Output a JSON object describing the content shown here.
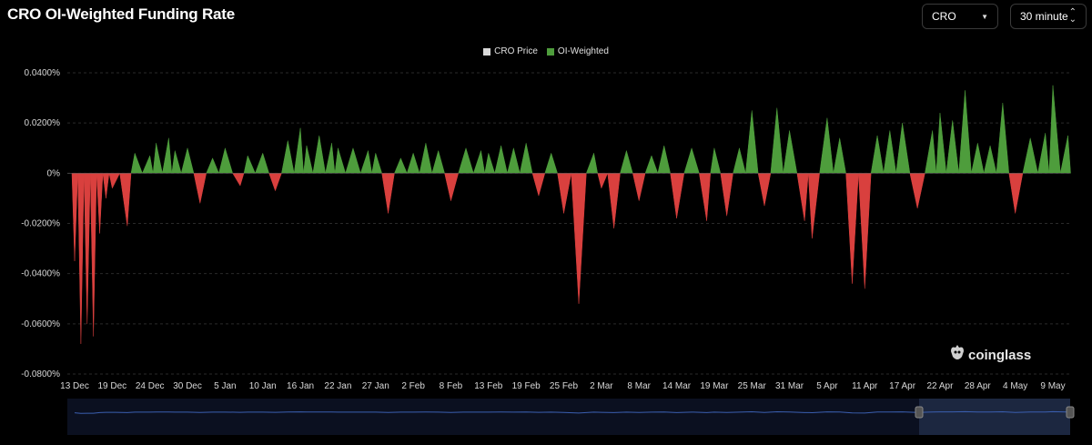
{
  "title": "CRO OI-Weighted Funding Rate",
  "controls": {
    "symbol": "CRO",
    "interval": "30 minute"
  },
  "watermark": "coinglass",
  "colors": {
    "positive": "#4e9d3c",
    "negative": "#d9403e",
    "price_swatch": "#d9d9d9",
    "navigator_line": "#3b5fb0",
    "navigator_bg": "#0b1020"
  },
  "chart_data": {
    "type": "area",
    "legend": [
      "CRO Price",
      "OI-Weighted"
    ],
    "legend_placement": "top-center",
    "y_unit": "%",
    "ylim": [
      -0.08,
      0.04
    ],
    "y_ticks": [
      "0.0400%",
      "0.0200%",
      "0%",
      "-0.0200%",
      "-0.0400%",
      "-0.0600%",
      "-0.0800%"
    ],
    "x_ticks": [
      "13 Dec",
      "19 Dec",
      "24 Dec",
      "30 Dec",
      "5 Jan",
      "10 Jan",
      "16 Jan",
      "22 Jan",
      "27 Jan",
      "2 Feb",
      "8 Feb",
      "13 Feb",
      "19 Feb",
      "25 Feb",
      "2 Mar",
      "8 Mar",
      "14 Mar",
      "19 Mar",
      "25 Mar",
      "31 Mar",
      "5 Apr",
      "11 Apr",
      "17 Apr",
      "22 Apr",
      "28 Apr",
      "4 May",
      "9 May"
    ],
    "series": [
      {
        "name": "OI-Weighted",
        "x": [
          "13 Dec",
          "14 Dec",
          "15 Dec",
          "16 Dec",
          "17 Dec",
          "18 Dec",
          "19 Dec",
          "21 Dec",
          "22 Dec",
          "24 Dec",
          "25 Dec",
          "27 Dec",
          "28 Dec",
          "30 Dec",
          "1 Jan",
          "3 Jan",
          "5 Jan",
          "7 Jan",
          "8 Jan",
          "10 Jan",
          "12 Jan",
          "14 Jan",
          "16 Jan",
          "17 Jan",
          "19 Jan",
          "21 Jan",
          "22 Jan",
          "24 Jan",
          "26 Jan",
          "27 Jan",
          "29 Jan",
          "31 Jan",
          "2 Feb",
          "4 Feb",
          "6 Feb",
          "8 Feb",
          "10 Feb",
          "12 Feb",
          "13 Feb",
          "15 Feb",
          "17 Feb",
          "19 Feb",
          "21 Feb",
          "23 Feb",
          "25 Feb",
          "27 Feb",
          "1 Mar",
          "2 Mar",
          "4 Mar",
          "6 Mar",
          "8 Mar",
          "10 Mar",
          "12 Mar",
          "14 Mar",
          "16 Mar",
          "18 Mar",
          "19 Mar",
          "21 Mar",
          "23 Mar",
          "25 Mar",
          "27 Mar",
          "29 Mar",
          "31 Mar",
          "2 Apr",
          "3 Apr",
          "5 Apr",
          "7 Apr",
          "9 Apr",
          "11 Apr",
          "13 Apr",
          "15 Apr",
          "17 Apr",
          "19 Apr",
          "21 Apr",
          "22 Apr",
          "24 Apr",
          "26 Apr",
          "28 Apr",
          "30 Apr",
          "2 May",
          "4 May",
          "6 May",
          "8 May",
          "9 May",
          "11 May"
        ],
        "values": [
          -0.035,
          -0.068,
          -0.06,
          -0.065,
          -0.024,
          -0.01,
          -0.006,
          -0.021,
          0.008,
          0.007,
          0.012,
          0.014,
          0.009,
          0.01,
          -0.012,
          0.006,
          0.01,
          -0.005,
          0.007,
          0.008,
          -0.007,
          0.013,
          0.018,
          0.011,
          0.015,
          0.012,
          0.01,
          0.01,
          0.009,
          0.008,
          -0.016,
          0.006,
          0.008,
          0.012,
          0.009,
          -0.011,
          0.01,
          0.009,
          0.008,
          0.011,
          0.01,
          0.012,
          -0.009,
          0.008,
          -0.016,
          -0.052,
          0.008,
          -0.006,
          -0.022,
          0.009,
          -0.011,
          0.007,
          0.011,
          -0.018,
          0.01,
          -0.019,
          0.01,
          -0.017,
          0.01,
          0.025,
          -0.013,
          0.026,
          0.017,
          -0.019,
          -0.026,
          0.022,
          0.014,
          -0.044,
          -0.046,
          0.015,
          0.017,
          0.02,
          -0.014,
          0.017,
          0.024,
          0.021,
          0.033,
          0.012,
          0.011,
          0.028,
          -0.016,
          0.014,
          0.016,
          0.035,
          0.015
        ]
      }
    ],
    "grid": true
  }
}
